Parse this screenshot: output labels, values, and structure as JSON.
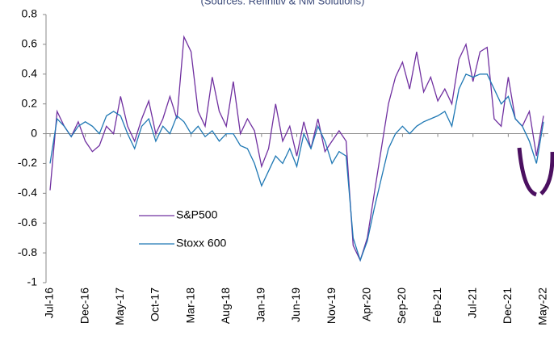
{
  "chart_data": {
    "type": "line",
    "subtitle": "(Sources: Refinitiv & NM Solutions)",
    "categories": [
      "Jul-16",
      null,
      null,
      null,
      null,
      "Dec-16",
      null,
      null,
      null,
      null,
      "May-17",
      null,
      null,
      null,
      null,
      "Oct-17",
      null,
      null,
      null,
      null,
      "Mar-18",
      null,
      null,
      null,
      null,
      "Aug-18",
      null,
      null,
      null,
      null,
      "Jan-19",
      null,
      null,
      null,
      null,
      "Jun-19",
      null,
      null,
      null,
      null,
      "Nov-19",
      null,
      null,
      null,
      null,
      "Apr-20",
      null,
      null,
      null,
      null,
      "Sep-20",
      null,
      null,
      null,
      null,
      "Feb-21",
      null,
      null,
      null,
      null,
      "Jul-21",
      null,
      null,
      null,
      null,
      "Dec-21",
      null,
      null,
      null,
      null,
      "May-22"
    ],
    "series": [
      {
        "name": "S&P500",
        "color": "#7030a0",
        "values": [
          -0.38,
          0.15,
          0.05,
          -0.02,
          0.08,
          -0.05,
          -0.12,
          -0.08,
          0.05,
          0.0,
          0.25,
          0.05,
          -0.05,
          0.1,
          0.22,
          0.0,
          0.1,
          0.25,
          0.1,
          0.65,
          0.55,
          0.15,
          0.05,
          0.38,
          0.15,
          0.05,
          0.35,
          0.0,
          0.1,
          0.02,
          -0.22,
          -0.1,
          0.2,
          -0.05,
          0.05,
          -0.15,
          0.08,
          -0.1,
          0.1,
          -0.12,
          -0.05,
          0.02,
          -0.05,
          -0.75,
          -0.85,
          -0.7,
          -0.4,
          -0.1,
          0.2,
          0.38,
          0.48,
          0.3,
          0.55,
          0.28,
          0.38,
          0.22,
          0.3,
          0.2,
          0.5,
          0.6,
          0.35,
          0.55,
          0.58,
          0.1,
          0.05,
          0.38,
          0.1,
          0.05,
          0.15,
          -0.15,
          0.12
        ]
      },
      {
        "name": "Stoxx 600",
        "color": "#1f78b4",
        "values": [
          -0.2,
          0.1,
          0.05,
          -0.02,
          0.05,
          0.08,
          0.05,
          0.0,
          0.12,
          0.15,
          0.12,
          0.0,
          -0.1,
          0.05,
          0.1,
          -0.05,
          0.05,
          0.0,
          0.12,
          0.08,
          0.0,
          0.05,
          -0.02,
          0.02,
          -0.05,
          0.0,
          0.0,
          -0.08,
          -0.1,
          -0.2,
          -0.35,
          -0.25,
          -0.15,
          -0.2,
          -0.1,
          -0.22,
          0.0,
          -0.1,
          0.05,
          -0.05,
          -0.2,
          -0.12,
          -0.15,
          -0.7,
          -0.85,
          -0.72,
          -0.5,
          -0.3,
          -0.1,
          0.0,
          0.05,
          0.0,
          0.05,
          0.08,
          0.1,
          0.12,
          0.15,
          0.05,
          0.3,
          0.4,
          0.38,
          0.4,
          0.4,
          0.3,
          0.2,
          0.25,
          0.1,
          0.05,
          -0.05,
          -0.2,
          0.08
        ]
      }
    ],
    "ylim": [
      -1,
      0.8
    ],
    "yticks": [
      0.8,
      0.6,
      0.4,
      0.2,
      0,
      -0.2,
      -0.4,
      -0.6,
      -0.8,
      -1
    ]
  }
}
